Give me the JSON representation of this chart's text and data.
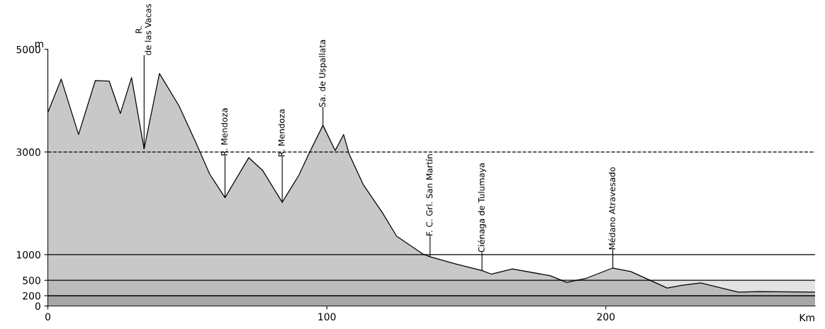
{
  "chart_data": {
    "type": "area",
    "xlabel": "Km",
    "ylabel": "m",
    "x": [
      0,
      4.8,
      11,
      17,
      22,
      26,
      30,
      34.5,
      40,
      47,
      53,
      58,
      63.5,
      72,
      77,
      84,
      90,
      93.5,
      98.6,
      103,
      106,
      108,
      113,
      120,
      125,
      134.5,
      137,
      146,
      155.6,
      159,
      166.5,
      180,
      186,
      193,
      202.5,
      209,
      222,
      227,
      234,
      247.5,
      255,
      275
    ],
    "series": [
      {
        "color": "#9a9a9a",
        "values": [
          3770,
          4420,
          3340,
          4390,
          4380,
          3750,
          4450,
          3060,
          4530,
          3900,
          3190,
          2570,
          2110,
          2890,
          2640,
          2020,
          2550,
          2960,
          3520,
          3030,
          3340,
          2960,
          2370,
          1810,
          1360,
          1010,
          960,
          820,
          690,
          620,
          720,
          590,
          460,
          540,
          740,
          670,
          350,
          400,
          450,
          270,
          280,
          270
        ]
      }
    ],
    "xlim": [
      0,
      275
    ],
    "ylim": [
      0,
      5000
    ],
    "xticks": [
      0,
      100,
      200
    ],
    "yticks": [
      0,
      200,
      500,
      1000,
      3000,
      5000
    ],
    "bands": [
      {
        "axis": "y",
        "from": 200,
        "to": 500,
        "color": "#e2e2e2"
      },
      {
        "axis": "y",
        "from": 0,
        "to": 200,
        "color": "#b4b4b4"
      }
    ],
    "ref_lines": [
      {
        "axis": "y",
        "value": 3000,
        "line_style": "dashed"
      },
      {
        "axis": "y",
        "value": 1000,
        "line_style": "solid"
      },
      {
        "axis": "y",
        "value": 500,
        "line_style": "solid"
      },
      {
        "axis": "y",
        "value": 200,
        "line_style": "solid"
      }
    ],
    "annotations": [
      {
        "text": "R.\nde las Vacas",
        "x": 34.5,
        "y": 3060
      },
      {
        "text": "R. Mendoza",
        "x": 63.5,
        "y": 2110
      },
      {
        "text": "R. Mendoza",
        "x": 84,
        "y": 2020
      },
      {
        "text": "Sa. de Uspallata",
        "x": 98.6,
        "y": 3520
      },
      {
        "text": "F. C. Grl. San Martín",
        "x": 137,
        "y": 960
      },
      {
        "text": "Ciénaga de Tulumaya",
        "x": 155.6,
        "y": 690
      },
      {
        "text": "Médano Atravesado",
        "x": 202.5,
        "y": 740
      }
    ],
    "grid": false,
    "line_style": "solid",
    "marker": "none"
  }
}
